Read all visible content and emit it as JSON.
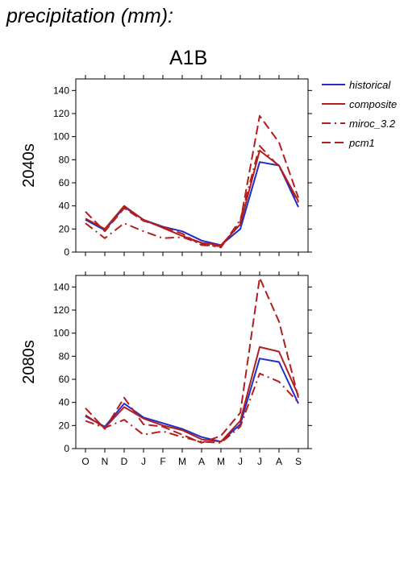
{
  "page": {
    "title": "precipitation (mm):",
    "scenario": "A1B"
  },
  "chart_data": [
    {
      "type": "line",
      "period_label": "2040s",
      "categories": [
        "O",
        "N",
        "D",
        "J",
        "F",
        "M",
        "A",
        "M",
        "J",
        "J",
        "A",
        "S"
      ],
      "ylim": [
        0,
        150
      ],
      "yticks": [
        0,
        20,
        40,
        60,
        80,
        100,
        120,
        140
      ],
      "series": [
        {
          "name": "historical",
          "color": "#1f2ecc",
          "style": "solid",
          "values": [
            28,
            19,
            39,
            28,
            22,
            18,
            10,
            6,
            20,
            78,
            75,
            39
          ]
        },
        {
          "name": "composite",
          "color": "#b21e1e",
          "style": "solid",
          "values": [
            29,
            20,
            40,
            28,
            21,
            14,
            8,
            6,
            24,
            88,
            75,
            44
          ]
        },
        {
          "name": "miroc_3.2",
          "color": "#b21e1e",
          "style": "dashdot",
          "values": [
            25,
            12,
            25,
            18,
            12,
            13,
            7,
            4,
            28,
            92,
            74,
            43
          ]
        },
        {
          "name": "pcm1",
          "color": "#b21e1e",
          "style": "dashed",
          "values": [
            35,
            18,
            38,
            27,
            22,
            16,
            6,
            5,
            26,
            118,
            95,
            47
          ]
        }
      ]
    },
    {
      "type": "line",
      "period_label": "2080s",
      "categories": [
        "O",
        "N",
        "D",
        "J",
        "F",
        "M",
        "A",
        "M",
        "J",
        "J",
        "A",
        "S"
      ],
      "ylim": [
        0,
        150
      ],
      "yticks": [
        0,
        20,
        40,
        60,
        80,
        100,
        120,
        140
      ],
      "series": [
        {
          "name": "historical",
          "color": "#1f2ecc",
          "style": "solid",
          "values": [
            28,
            19,
            39,
            27,
            22,
            17,
            10,
            6,
            21,
            78,
            75,
            39
          ]
        },
        {
          "name": "composite",
          "color": "#b21e1e",
          "style": "solid",
          "values": [
            29,
            18,
            36,
            26,
            20,
            16,
            8,
            6,
            24,
            88,
            84,
            46
          ]
        },
        {
          "name": "miroc_3.2",
          "color": "#b21e1e",
          "style": "dashdot",
          "values": [
            24,
            18,
            25,
            12,
            15,
            10,
            6,
            5,
            19,
            65,
            58,
            40
          ]
        },
        {
          "name": "pcm1",
          "color": "#b21e1e",
          "style": "dashed",
          "values": [
            35,
            17,
            44,
            21,
            19,
            12,
            5,
            11,
            31,
            148,
            110,
            44
          ]
        }
      ]
    }
  ]
}
